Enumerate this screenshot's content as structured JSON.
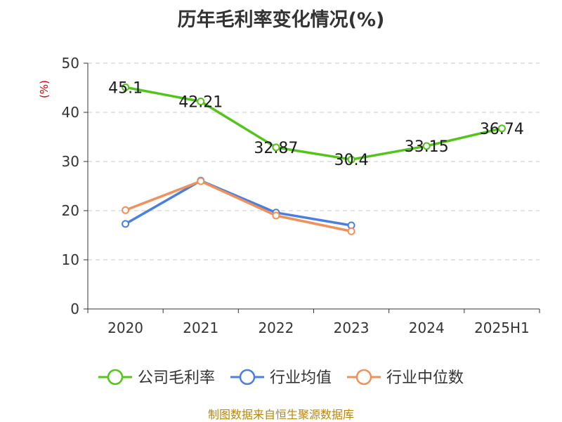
{
  "chart_data": {
    "type": "line",
    "title": "历年毛利率变化情况(%)",
    "ylabel": "(%)",
    "xlabel": "",
    "categories": [
      "2020",
      "2021",
      "2022",
      "2023",
      "2024",
      "2025H1"
    ],
    "ylim": [
      0,
      50
    ],
    "yticks": [
      0,
      10,
      20,
      30,
      40,
      50
    ],
    "grid": true,
    "legend_position": "bottom",
    "series": [
      {
        "name": "公司毛利率",
        "color": "#52c41a",
        "values": [
          45.1,
          42.21,
          32.87,
          30.4,
          33.15,
          36.74
        ],
        "labels": [
          "45.1",
          "42.21",
          "32.87",
          "30.4",
          "33.15",
          "36.74"
        ]
      },
      {
        "name": "行业均值",
        "color": "#4a7fe0",
        "values": [
          17.3,
          26.1,
          19.6,
          17.0,
          null,
          null
        ]
      },
      {
        "name": "行业中位数",
        "color": "#f0905a",
        "values": [
          20.1,
          26.0,
          19.0,
          15.8,
          null,
          null
        ]
      }
    ]
  },
  "footer": {
    "source": "制图数据来自恒生聚源数据库"
  }
}
